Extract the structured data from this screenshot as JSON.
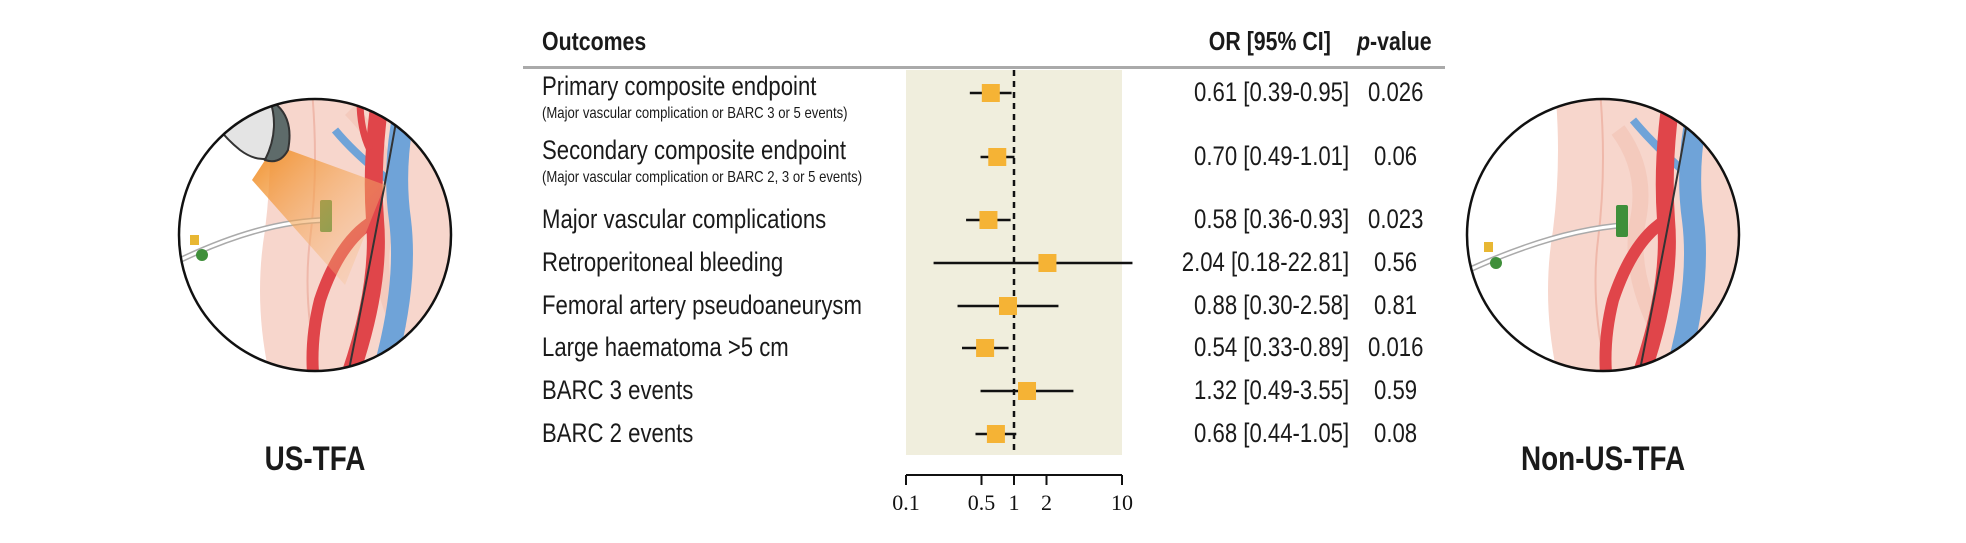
{
  "left_panel": {
    "label": "US-TFA"
  },
  "right_panel": {
    "label": "Non-US-TFA"
  },
  "header": {
    "outcomes": "Outcomes",
    "or_ci": "OR [95% CI]",
    "p_italic": "p",
    "p_rest": "-value"
  },
  "colors": {
    "marker": "#F5B335",
    "shade": "#F0EEDD",
    "artery": "#E0454A",
    "vein": "#6FA3D8",
    "skin": "#F6CFC4",
    "probe_beam": "#F08A1E",
    "sheath": "#3F8F3A"
  },
  "chart_data": {
    "type": "forest",
    "x_scale": "log",
    "xlim": [
      0.1,
      10
    ],
    "x_ticks": [
      0.1,
      0.5,
      1,
      2,
      10
    ],
    "x_tick_labels": [
      "0.1",
      "0.5",
      "1",
      "2",
      "10"
    ],
    "shaded_region": [
      0.1,
      10
    ],
    "reference_line": 1,
    "rows": [
      {
        "label": "Primary composite endpoint",
        "sublabel": "(Major vascular complication or BARC 3 or 5 events)",
        "or": 0.61,
        "lo": 0.39,
        "hi": 0.95,
        "or_ci": "0.61 [0.39-0.95]",
        "p": "0.026"
      },
      {
        "label": "Secondary composite endpoint",
        "sublabel": "(Major vascular complication or BARC 2, 3  or 5 events)",
        "or": 0.7,
        "lo": 0.49,
        "hi": 1.01,
        "or_ci": "0.70 [0.49-1.01]",
        "p": "0.06"
      },
      {
        "label": "Major vascular complications",
        "sublabel": "",
        "or": 0.58,
        "lo": 0.36,
        "hi": 0.93,
        "or_ci": "0.58 [0.36-0.93]",
        "p": "0.023"
      },
      {
        "label": "Retroperitoneal bleeding",
        "sublabel": "",
        "or": 2.04,
        "lo": 0.18,
        "hi": 22.81,
        "or_ci": "2.04 [0.18-22.81]",
        "p": "0.56"
      },
      {
        "label": "Femoral artery pseudoaneurysm",
        "sublabel": "",
        "or": 0.88,
        "lo": 0.3,
        "hi": 2.58,
        "or_ci": "0.88 [0.30-2.58]",
        "p": "0.81"
      },
      {
        "label": "Large haematoma >5 cm",
        "sublabel": "",
        "or": 0.54,
        "lo": 0.33,
        "hi": 0.89,
        "or_ci": "0.54 [0.33-0.89]",
        "p": "0.016"
      },
      {
        "label": "BARC 3 events",
        "sublabel": "",
        "or": 1.32,
        "lo": 0.49,
        "hi": 3.55,
        "or_ci": "1.32 [0.49-3.55]",
        "p": "0.59"
      },
      {
        "label": "BARC 2 events",
        "sublabel": "",
        "or": 0.68,
        "lo": 0.44,
        "hi": 1.05,
        "or_ci": "0.68 [0.44-1.05]",
        "p": "0.08"
      }
    ]
  }
}
